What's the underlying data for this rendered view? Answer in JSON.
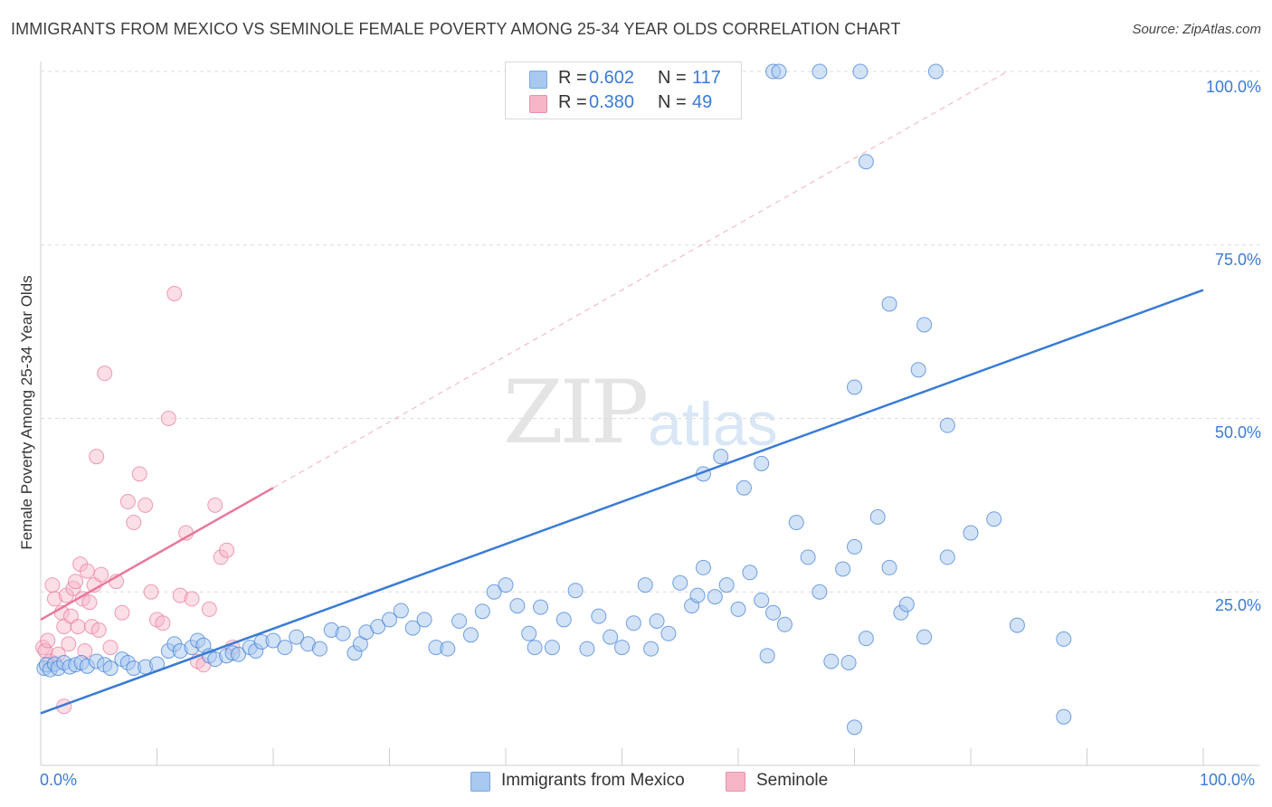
{
  "title": "IMMIGRANTS FROM MEXICO VS SEMINOLE FEMALE POVERTY AMONG 25-34 YEAR OLDS CORRELATION CHART",
  "source": "Source: ZipAtlas.com",
  "watermark": {
    "zip": "ZIP",
    "atlas": "atlas"
  },
  "legend": {
    "rows": [
      {
        "r_label": "R =",
        "r_value": "0.602",
        "n_label": "N =",
        "n_value": "117",
        "color": "#a8c8f0"
      },
      {
        "r_label": "R =",
        "r_value": "0.380",
        "n_label": "N =",
        "n_value": "49",
        "color": "#f7b6c8"
      }
    ]
  },
  "bottom_legend": [
    "Immigrants from Mexico",
    "Seminole"
  ],
  "chart_data": {
    "type": "scatter",
    "title": "IMMIGRANTS FROM MEXICO VS SEMINOLE FEMALE POVERTY AMONG 25-34 YEAR OLDS CORRELATION CHART",
    "xlabel": "",
    "ylabel": "Female Poverty Among 25-34 Year Olds",
    "xlim": [
      0,
      100
    ],
    "ylim": [
      0,
      100
    ],
    "x_tick_labels": [
      "0.0%",
      "100.0%"
    ],
    "y_tick_labels": [
      "25.0%",
      "50.0%",
      "75.0%",
      "100.0%"
    ],
    "y_ticks": [
      25,
      50,
      75,
      100
    ],
    "grid": "dashed horizontal",
    "legend_position": "top-center",
    "colors": {
      "mexico": "#3a7bd5",
      "mexico_fill": "#a8c8f0",
      "seminole": "#e8789a",
      "seminole_fill": "#f7b6c8"
    },
    "series": [
      {
        "name": "Immigrants from Mexico",
        "trend": {
          "x": [
            0,
            100
          ],
          "y": [
            7.5,
            68.5
          ]
        },
        "points": [
          [
            0.3,
            14
          ],
          [
            0.5,
            14.5
          ],
          [
            0.8,
            13.8
          ],
          [
            1.2,
            14.6
          ],
          [
            1.5,
            14
          ],
          [
            2,
            14.8
          ],
          [
            2.5,
            14.2
          ],
          [
            3,
            14.5
          ],
          [
            3.5,
            14.8
          ],
          [
            4,
            14.3
          ],
          [
            4.8,
            15
          ],
          [
            5.5,
            14.5
          ],
          [
            6,
            14
          ],
          [
            7,
            15.3
          ],
          [
            7.5,
            14.8
          ],
          [
            8,
            14
          ],
          [
            9,
            14.2
          ],
          [
            10,
            14.6
          ],
          [
            11,
            16.5
          ],
          [
            11.5,
            17.5
          ],
          [
            12,
            16.5
          ],
          [
            13,
            17
          ],
          [
            13.5,
            18
          ],
          [
            14,
            17.3
          ],
          [
            14.5,
            15.8
          ],
          [
            15,
            15.3
          ],
          [
            16,
            15.8
          ],
          [
            16.5,
            16.2
          ],
          [
            17,
            16
          ],
          [
            18,
            17
          ],
          [
            18.5,
            16.5
          ],
          [
            19,
            17.8
          ],
          [
            20,
            18
          ],
          [
            21,
            17
          ],
          [
            22,
            18.5
          ],
          [
            23,
            17.5
          ],
          [
            24,
            16.8
          ],
          [
            25,
            19.5
          ],
          [
            26,
            19
          ],
          [
            27,
            16.2
          ],
          [
            27.5,
            17.5
          ],
          [
            28,
            19.2
          ],
          [
            29,
            20
          ],
          [
            30,
            21
          ],
          [
            31,
            22.3
          ],
          [
            32,
            19.8
          ],
          [
            33,
            21
          ],
          [
            34,
            17
          ],
          [
            35,
            16.8
          ],
          [
            36,
            20.8
          ],
          [
            37,
            18.8
          ],
          [
            38,
            22.2
          ],
          [
            39,
            25
          ],
          [
            40,
            26
          ],
          [
            41,
            23
          ],
          [
            42,
            19
          ],
          [
            42.5,
            17
          ],
          [
            43,
            22.8
          ],
          [
            44,
            17
          ],
          [
            45,
            21
          ],
          [
            46,
            25.2
          ],
          [
            47,
            16.8
          ],
          [
            48,
            21.5
          ],
          [
            49,
            18.5
          ],
          [
            50,
            17
          ],
          [
            51,
            20.5
          ],
          [
            52,
            26
          ],
          [
            52.5,
            16.8
          ],
          [
            53,
            20.8
          ],
          [
            54,
            19
          ],
          [
            55,
            26.3
          ],
          [
            56,
            23
          ],
          [
            56.5,
            24.5
          ],
          [
            57,
            28.5
          ],
          [
            58,
            24.3
          ],
          [
            59,
            26
          ],
          [
            60,
            22.5
          ],
          [
            61,
            27.8
          ],
          [
            62,
            23.8
          ],
          [
            62.5,
            15.8
          ],
          [
            63,
            22
          ],
          [
            64,
            20.3
          ],
          [
            65,
            35
          ],
          [
            66,
            30
          ],
          [
            67,
            25
          ],
          [
            68,
            15
          ],
          [
            69,
            28.3
          ],
          [
            69.5,
            14.8
          ],
          [
            70,
            31.5
          ],
          [
            71,
            18.3
          ],
          [
            72,
            35.8
          ],
          [
            73,
            28.5
          ],
          [
            74,
            22
          ],
          [
            74.5,
            23.2
          ],
          [
            76,
            18.5
          ],
          [
            78,
            30
          ],
          [
            80,
            33.5
          ],
          [
            82,
            35.5
          ],
          [
            84,
            20.2
          ],
          [
            88,
            18.2
          ],
          [
            57,
            42
          ],
          [
            58.5,
            44.5
          ],
          [
            60.5,
            40
          ],
          [
            62,
            43.5
          ],
          [
            70,
            54.5
          ],
          [
            71,
            87
          ],
          [
            73,
            66.5
          ],
          [
            75.5,
            57
          ],
          [
            76,
            63.5
          ],
          [
            78,
            49
          ],
          [
            63,
            100
          ],
          [
            63.5,
            100
          ],
          [
            67,
            100
          ],
          [
            70.5,
            100
          ],
          [
            77,
            100
          ],
          [
            70,
            5.5
          ],
          [
            88,
            7
          ]
        ]
      },
      {
        "name": "Seminole",
        "trend": {
          "x": [
            0,
            20
          ],
          "y": [
            21,
            40
          ]
        },
        "points": [
          [
            0.2,
            17
          ],
          [
            0.4,
            16.5
          ],
          [
            0.6,
            18
          ],
          [
            0.8,
            15
          ],
          [
            1,
            26
          ],
          [
            1.2,
            24
          ],
          [
            1.5,
            16
          ],
          [
            1.8,
            22
          ],
          [
            2,
            20
          ],
          [
            2.2,
            24.5
          ],
          [
            2.4,
            17.5
          ],
          [
            2.6,
            21.5
          ],
          [
            2.8,
            25.5
          ],
          [
            3,
            26.5
          ],
          [
            3.2,
            20
          ],
          [
            3.4,
            29
          ],
          [
            3.6,
            24
          ],
          [
            3.8,
            16.5
          ],
          [
            4,
            28
          ],
          [
            4.2,
            23.5
          ],
          [
            4.4,
            20
          ],
          [
            4.6,
            26
          ],
          [
            4.8,
            44.5
          ],
          [
            5,
            19.5
          ],
          [
            5.2,
            27.5
          ],
          [
            5.5,
            56.5
          ],
          [
            6,
            17
          ],
          [
            6.5,
            26.5
          ],
          [
            7,
            22
          ],
          [
            7.5,
            38
          ],
          [
            8,
            35
          ],
          [
            8.5,
            42
          ],
          [
            9,
            37.5
          ],
          [
            9.5,
            25
          ],
          [
            10,
            21
          ],
          [
            10.5,
            20.5
          ],
          [
            11,
            50
          ],
          [
            11.5,
            68
          ],
          [
            12,
            24.5
          ],
          [
            12.5,
            33.5
          ],
          [
            13,
            24
          ],
          [
            13.5,
            15
          ],
          [
            14,
            14.5
          ],
          [
            14.5,
            22.5
          ],
          [
            15,
            37.5
          ],
          [
            15.5,
            30
          ],
          [
            16,
            31
          ],
          [
            16.5,
            17
          ],
          [
            2,
            8.5
          ]
        ]
      }
    ]
  }
}
